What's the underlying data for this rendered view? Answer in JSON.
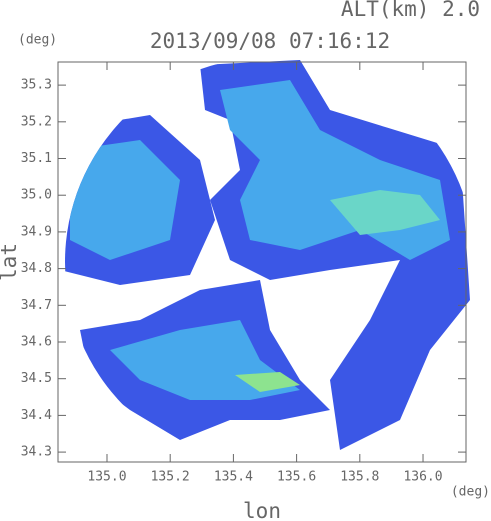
{
  "chart_data": {
    "type": "radar-map",
    "title": "2013/09/08 07:16:12",
    "subtitle": "ALT(km) 2.0",
    "y_unit": "(deg)",
    "x_unit": "(deg)",
    "xlabel": "lon",
    "ylabel": "lat",
    "xlim": [
      134.845,
      136.136
    ],
    "ylim": [
      34.273,
      35.363
    ],
    "xticks": [
      {
        "value": 135.0,
        "label": "135.0"
      },
      135.2,
      135.4,
      135.6,
      135.8,
      {
        "value": 136.0,
        "label": "136.0"
      }
    ],
    "yticks": [
      34.3,
      34.4,
      34.5,
      34.6,
      34.7,
      34.8,
      34.9,
      {
        "value": 35.0,
        "label": "35.0"
      },
      35.1,
      35.2,
      35.3
    ]
  }
}
